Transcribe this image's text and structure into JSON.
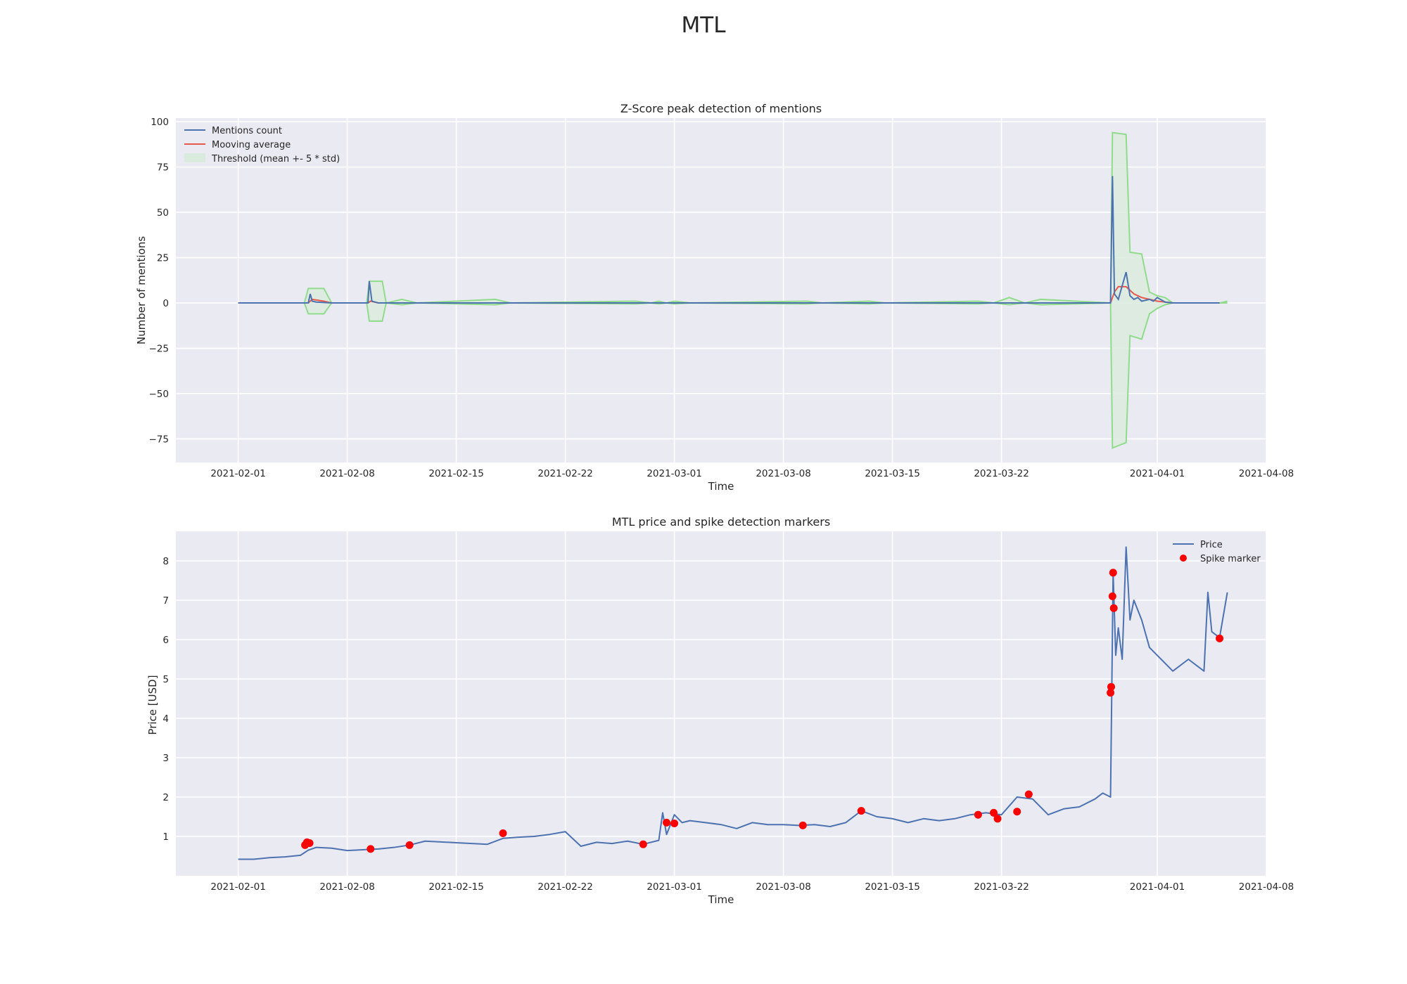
{
  "page": {
    "title": "MTL"
  },
  "colors": {
    "mentions": "#4c72b0",
    "moving_average": "#e8584a",
    "threshold_line": "#90dc8c",
    "threshold_fill": "#d9ebdc",
    "price": "#4c72b0",
    "spike": "#ff0000",
    "axes_bg": "#eaeaf2"
  },
  "chart_data": [
    {
      "type": "line",
      "title": "Z-Score peak detection of mentions",
      "xlabel": "Time",
      "ylabel": "Number of mentions",
      "xlim": [
        "2021-01-28",
        "2021-04-08"
      ],
      "ylim": [
        -88,
        102
      ],
      "xticks": [
        "2021-02-01",
        "2021-02-08",
        "2021-02-15",
        "2021-02-22",
        "2021-03-01",
        "2021-03-08",
        "2021-03-15",
        "2021-03-22",
        "2021-04-01",
        "2021-04-08"
      ],
      "yticks": [
        -75,
        -50,
        -25,
        0,
        25,
        50,
        75,
        100
      ],
      "ytick_labels": [
        "−75",
        "−50",
        "−25",
        "0",
        "25",
        "50",
        "75",
        "100"
      ],
      "grid": true,
      "legend": {
        "placement": "top-left",
        "entries": [
          "Mentions count",
          "Mooving average",
          "Threshold (mean +- 5 * std)"
        ]
      },
      "series": [
        {
          "name": "Mentions count",
          "x": [
            "2021-02-01",
            "2021-02-05 12:00",
            "2021-02-05 15:00",
            "2021-02-05 18:00",
            "2021-02-06",
            "2021-02-07",
            "2021-02-09 08:00",
            "2021-02-09 10:00",
            "2021-02-09 14:00",
            "2021-02-10",
            "2021-03-29 00:00",
            "2021-03-29 03:00",
            "2021-03-29 06:00",
            "2021-03-29 12:00",
            "2021-03-30 00:00",
            "2021-03-30 06:00",
            "2021-03-30 12:00",
            "2021-03-30 18:00",
            "2021-03-31 00:00",
            "2021-03-31 12:00",
            "2021-03-31 18:00",
            "2021-04-01 00:00",
            "2021-04-01 12:00",
            "2021-04-02",
            "2021-04-05"
          ],
          "y": [
            0,
            0,
            5,
            1,
            0.5,
            0,
            0,
            12,
            1,
            0,
            0,
            70,
            5,
            2,
            17,
            4,
            2,
            3,
            1,
            2,
            1,
            3,
            0.5,
            0,
            0
          ]
        },
        {
          "name": "Mooving average",
          "x": [
            "2021-02-01",
            "2021-02-05 12:00",
            "2021-02-05 18:00",
            "2021-02-06 12:00",
            "2021-02-07",
            "2021-02-09 08:00",
            "2021-02-09 12:00",
            "2021-02-10",
            "2021-03-29 00:00",
            "2021-03-29 06:00",
            "2021-03-29 12:00",
            "2021-03-30 00:00",
            "2021-03-30 12:00",
            "2021-03-31 00:00",
            "2021-03-31 12:00",
            "2021-04-01 00:00",
            "2021-04-01 12:00",
            "2021-04-02",
            "2021-04-05"
          ],
          "y": [
            0,
            0,
            2,
            1,
            0,
            0,
            1,
            0,
            0,
            6,
            9,
            9,
            5,
            3,
            2,
            1,
            0.5,
            0,
            0
          ]
        },
        {
          "name": "Threshold (mean +- 5 * std)",
          "x": [
            "2021-02-01",
            "2021-02-05 06:00",
            "2021-02-05 12:00",
            "2021-02-06 12:00",
            "2021-02-07",
            "2021-02-09 06:00",
            "2021-02-09 10:00",
            "2021-02-10 06:00",
            "2021-02-10 12:00",
            "2021-02-11 12:00",
            "2021-02-12 12:00",
            "2021-02-17 12:00",
            "2021-02-18 12:00",
            "2021-02-26 12:00",
            "2021-02-27 12:00",
            "2021-02-28 00:00",
            "2021-02-28 12:00",
            "2021-03-01",
            "2021-03-02",
            "2021-03-09 12:00",
            "2021-03-10 12:00",
            "2021-03-13 12:00",
            "2021-03-14 12:00",
            "2021-03-20 12:00",
            "2021-03-21 12:00",
            "2021-03-22 12:00",
            "2021-03-23 12:00",
            "2021-03-24 12:00",
            "2021-03-29 00:00",
            "2021-03-29 03:00",
            "2021-03-30 00:00",
            "2021-03-30 06:00",
            "2021-03-31 00:00",
            "2021-03-31 12:00",
            "2021-04-01 00:00",
            "2021-04-01 12:00",
            "2021-04-02",
            "2021-04-05 00:00",
            "2021-04-05 12:00"
          ],
          "upper": [
            0,
            0,
            8,
            8,
            0,
            0,
            12,
            12,
            0,
            2,
            0,
            2,
            0,
            1,
            0,
            1,
            0,
            1,
            0,
            1,
            0,
            1,
            0,
            1,
            0,
            3,
            0,
            2,
            0,
            94,
            93,
            28,
            27,
            6,
            4,
            3,
            0,
            0,
            1
          ],
          "lower": [
            0,
            0,
            -6,
            -6,
            0,
            0,
            -10,
            -10,
            0,
            -1,
            0,
            -1,
            0,
            -0.5,
            0,
            -0.5,
            0,
            -0.5,
            0,
            -0.5,
            0,
            -0.5,
            0,
            -0.5,
            0,
            -1,
            0,
            -1,
            0,
            -80,
            -77,
            -18,
            -20,
            -6,
            -3,
            -1,
            0,
            0,
            0
          ]
        }
      ]
    },
    {
      "type": "line",
      "title": "MTL price and spike detection markers",
      "xlabel": "Time",
      "ylabel": "Price [USD]",
      "xlim": [
        "2021-01-28",
        "2021-04-08"
      ],
      "ylim": [
        0,
        8.75
      ],
      "xticks": [
        "2021-02-01",
        "2021-02-08",
        "2021-02-15",
        "2021-02-22",
        "2021-03-01",
        "2021-03-08",
        "2021-03-15",
        "2021-03-22",
        "2021-04-01",
        "2021-04-08"
      ],
      "yticks": [
        1,
        2,
        3,
        4,
        5,
        6,
        7,
        8
      ],
      "grid": true,
      "legend": {
        "placement": "top-right",
        "entries": [
          "Price",
          "Spike marker"
        ]
      },
      "series": [
        {
          "name": "Price",
          "x": [
            "2021-02-01",
            "2021-02-02",
            "2021-02-03",
            "2021-02-04",
            "2021-02-05 00:00",
            "2021-02-05 12:00",
            "2021-02-06",
            "2021-02-07",
            "2021-02-08",
            "2021-02-09",
            "2021-02-10",
            "2021-02-11",
            "2021-02-12",
            "2021-02-13",
            "2021-02-14",
            "2021-02-15",
            "2021-02-16",
            "2021-02-17",
            "2021-02-18",
            "2021-02-19",
            "2021-02-20",
            "2021-02-21",
            "2021-02-22",
            "2021-02-23",
            "2021-02-24",
            "2021-02-25",
            "2021-02-26",
            "2021-02-27",
            "2021-02-28 00:00",
            "2021-02-28 06:00",
            "2021-02-28 12:00",
            "2021-03-01 00:00",
            "2021-03-01 12:00",
            "2021-03-02",
            "2021-03-03",
            "2021-03-04",
            "2021-03-05",
            "2021-03-06",
            "2021-03-07",
            "2021-03-08",
            "2021-03-09",
            "2021-03-10",
            "2021-03-11",
            "2021-03-12",
            "2021-03-13",
            "2021-03-14",
            "2021-03-15",
            "2021-03-16",
            "2021-03-17",
            "2021-03-18",
            "2021-03-19",
            "2021-03-20",
            "2021-03-21",
            "2021-03-22",
            "2021-03-23",
            "2021-03-24",
            "2021-03-25",
            "2021-03-26",
            "2021-03-27",
            "2021-03-28 00:00",
            "2021-03-28 12:00",
            "2021-03-29 00:00",
            "2021-03-29 02:00",
            "2021-03-29 04:00",
            "2021-03-29 08:00",
            "2021-03-29 12:00",
            "2021-03-29 18:00",
            "2021-03-30 00:00",
            "2021-03-30 06:00",
            "2021-03-30 12:00",
            "2021-03-31 00:00",
            "2021-03-31 12:00",
            "2021-04-01",
            "2021-04-02",
            "2021-04-03",
            "2021-04-04 00:00",
            "2021-04-04 06:00",
            "2021-04-04 12:00",
            "2021-04-05 00:00",
            "2021-04-05 12:00"
          ],
          "y": [
            0.42,
            0.42,
            0.46,
            0.48,
            0.52,
            0.65,
            0.72,
            0.7,
            0.64,
            0.66,
            0.68,
            0.72,
            0.78,
            0.88,
            0.86,
            0.84,
            0.82,
            0.8,
            0.95,
            0.98,
            1.0,
            1.05,
            1.12,
            0.75,
            0.85,
            0.82,
            0.88,
            0.8,
            0.9,
            1.6,
            1.05,
            1.55,
            1.35,
            1.4,
            1.35,
            1.3,
            1.2,
            1.35,
            1.3,
            1.3,
            1.28,
            1.3,
            1.25,
            1.35,
            1.65,
            1.5,
            1.45,
            1.35,
            1.45,
            1.4,
            1.45,
            1.55,
            1.6,
            1.55,
            2.0,
            1.95,
            1.55,
            1.7,
            1.75,
            1.95,
            2.1,
            2.0,
            4.8,
            7.7,
            5.6,
            6.3,
            5.5,
            8.35,
            6.5,
            7.0,
            6.5,
            5.8,
            5.6,
            5.2,
            5.5,
            5.2,
            7.2,
            6.2,
            6.05,
            7.2
          ]
        },
        {
          "name": "Spike marker",
          "x": [
            "2021-02-05 07:00",
            "2021-02-05 10:00",
            "2021-02-05 14:00",
            "2021-02-09 12:00",
            "2021-02-12",
            "2021-02-18",
            "2021-02-27",
            "2021-02-28 12:00",
            "2021-03-01",
            "2021-03-09 06:00",
            "2021-03-13",
            "2021-03-20 12:00",
            "2021-03-21 12:00",
            "2021-03-21 18:00",
            "2021-03-23",
            "2021-03-23 18:00",
            "2021-03-29 00:00",
            "2021-03-29 01:00",
            "2021-03-29 03:00",
            "2021-03-29 04:00",
            "2021-03-29 05:00",
            "2021-04-05"
          ],
          "y": [
            0.78,
            0.85,
            0.83,
            0.68,
            0.78,
            1.08,
            0.8,
            1.35,
            1.33,
            1.28,
            1.65,
            1.55,
            1.6,
            1.45,
            1.63,
            2.07,
            4.65,
            4.8,
            7.1,
            7.7,
            6.8,
            6.03
          ]
        }
      ]
    }
  ]
}
